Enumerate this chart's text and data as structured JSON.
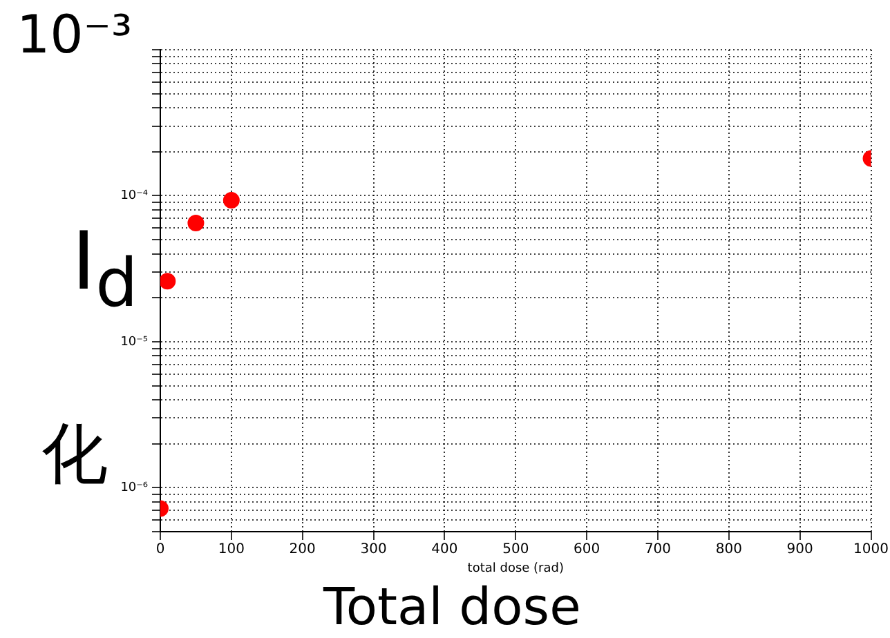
{
  "chart_data": {
    "type": "scatter",
    "xlabel": "total dose (rad)",
    "ylabel": "I$_{d}$",
    "x": [
      0,
      10,
      50,
      100,
      1000
    ],
    "series": [
      {
        "color": "#ff0000",
        "values": [
          7.2e-07,
          2.6e-05,
          6.5e-05,
          9.3e-05,
          0.00018
        ]
      }
    ],
    "log": "y",
    "xlim": [
      0,
      1000
    ],
    "xticks": [
      0,
      100,
      200,
      300,
      400,
      500,
      600,
      700,
      800,
      900,
      1000
    ],
    "ylim": [
      5e-07,
      0.001
    ],
    "yticks": [
      {
        "value": 5e-07,
        "label": null
      },
      {
        "value": 6e-07,
        "label": null
      },
      {
        "value": 7e-07,
        "label": null
      },
      {
        "value": 8e-07,
        "label": null
      },
      {
        "value": 9e-07,
        "label": null
      },
      {
        "value": 1e-06,
        "label": "10⁻⁶"
      },
      {
        "value": 2e-06,
        "label": null
      },
      {
        "value": 3e-06,
        "label": null
      },
      {
        "value": 4e-06,
        "label": null
      },
      {
        "value": 5e-06,
        "label": null
      },
      {
        "value": 6e-06,
        "label": null
      },
      {
        "value": 7e-06,
        "label": null
      },
      {
        "value": 8e-06,
        "label": null
      },
      {
        "value": 9e-06,
        "label": null
      },
      {
        "value": 1e-05,
        "label": "10⁻⁵"
      },
      {
        "value": 2e-05,
        "label": null
      },
      {
        "value": 3e-05,
        "label": null
      },
      {
        "value": 4e-05,
        "label": null
      },
      {
        "value": 5e-05,
        "label": null
      },
      {
        "value": 6e-05,
        "label": null
      },
      {
        "value": 7e-05,
        "label": null
      },
      {
        "value": 8e-05,
        "label": null
      },
      {
        "value": 9e-05,
        "label": null
      },
      {
        "value": 0.0001,
        "label": "10⁻⁴"
      },
      {
        "value": 0.0002,
        "label": null
      },
      {
        "value": 0.0003,
        "label": null
      },
      {
        "value": 0.0004,
        "label": null
      },
      {
        "value": 0.0005,
        "label": null
      },
      {
        "value": 0.0006,
        "label": null
      },
      {
        "value": 0.0007,
        "label": null
      },
      {
        "value": 0.0008,
        "label": null
      },
      {
        "value": 0.0009,
        "label": null
      },
      {
        "value": 0.001,
        "label": null
      }
    ],
    "grid": true,
    "legend": false,
    "marker": "circle",
    "annotations": [
      "10⁻³",
      "化",
      "Total dose"
    ]
  }
}
